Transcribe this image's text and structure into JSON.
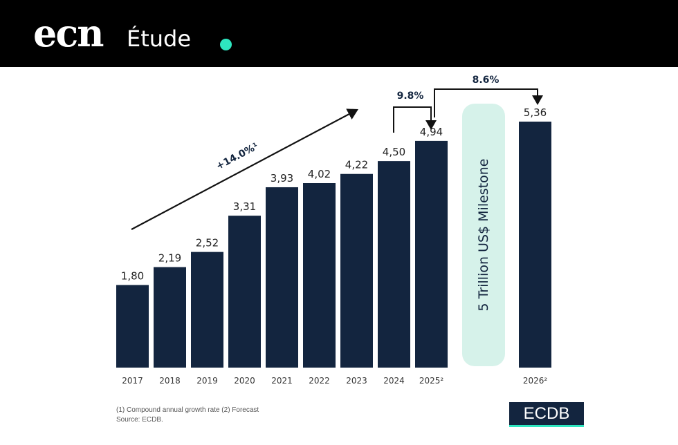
{
  "header": {
    "logo": "ecn",
    "section": "Étude",
    "dot_color": "#2ee6c0"
  },
  "chart_data": {
    "type": "bar",
    "categories": [
      "2017",
      "2018",
      "2019",
      "2020",
      "2021",
      "2022",
      "2023",
      "2024",
      "2025²",
      "2026²"
    ],
    "values": [
      1.8,
      2.19,
      2.52,
      3.31,
      3.93,
      4.02,
      4.22,
      4.5,
      4.94,
      5.36
    ],
    "value_labels": [
      "1,80",
      "2,19",
      "2,52",
      "3,31",
      "3,93",
      "4,02",
      "4,22",
      "4,50",
      "4,94",
      "5,36"
    ],
    "ylim": [
      0,
      5.36
    ],
    "grid": false,
    "bar_color": "#13253f",
    "annotations": {
      "cagr": "+14.0%¹",
      "growth_2024_2025": "9.8%",
      "growth_2025_2026": "8.6%",
      "milestone": "5 Trillion US$ Milestone",
      "milestone_color": "#d6f2ea"
    }
  },
  "footer": {
    "note": "(1) Compound annual growth rate (2) Forecast",
    "source": "Source: ECDB.",
    "brand": "ECDB",
    "brand_bg": "#13253f",
    "brand_accent": "#2ee6c0"
  }
}
